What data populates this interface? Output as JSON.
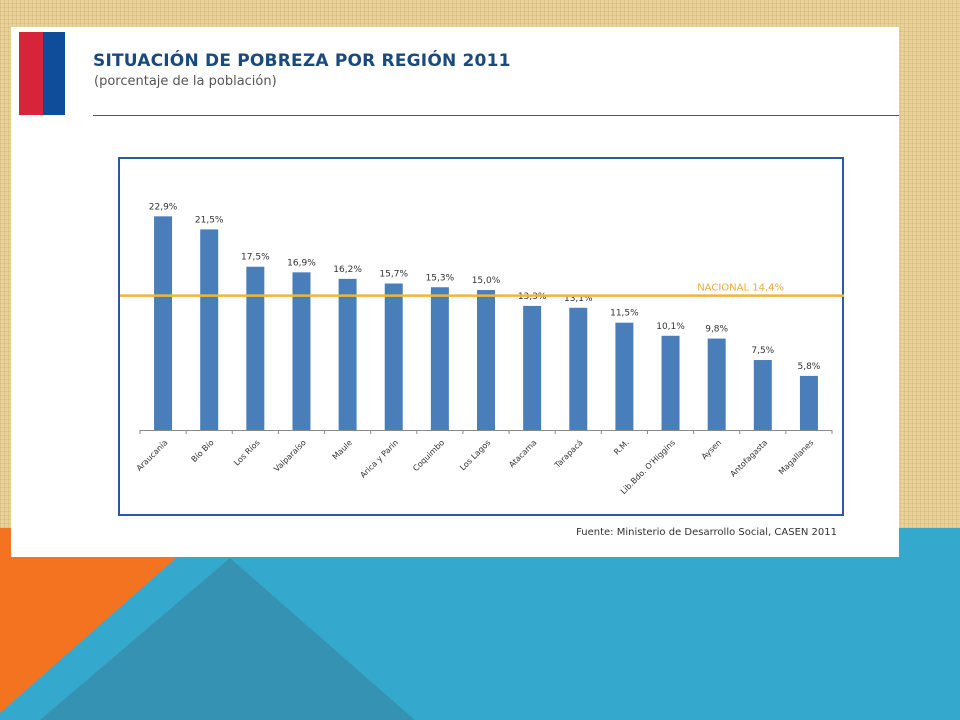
{
  "slide": {
    "title": "SITUACIÓN DE POBREZA POR REGIÓN 2011",
    "subtitle": "(porcentaje de la población)",
    "source": "Fuente: Ministerio de Desarrollo Social, CASEN 2011"
  },
  "colors": {
    "bar": "#4a7ebb",
    "reference_line": "#f2b536",
    "reference_label": "#f2a93b",
    "chart_border": "#2d58a5",
    "flag_red": "#d6253a",
    "flag_blue": "#0f4c9a",
    "background_orange": "#f47321",
    "background_blue": "#35a9cd"
  },
  "chart_data": {
    "type": "bar",
    "title": "SITUACIÓN DE POBREZA POR REGIÓN 2011",
    "subtitle": "(porcentaje de la población)",
    "categories": [
      "Araucanía",
      "Bío Bío",
      "Los Ríos",
      "Valparaíso",
      "Maule",
      "Arica y Parin",
      "Coquimbo",
      "Los Lagos",
      "Atacama",
      "Tarapacá",
      "R.M.",
      "Lib.Bdo. O'Higgins",
      "Aysen",
      "Antofagasta",
      "Magallanes"
    ],
    "values": [
      22.9,
      21.5,
      17.5,
      16.9,
      16.2,
      15.7,
      15.3,
      15.0,
      13.3,
      13.1,
      11.5,
      10.1,
      9.8,
      7.5,
      5.8
    ],
    "data_labels": [
      "22,9%",
      "21,5%",
      "17,5%",
      "16,9%",
      "16,2%",
      "15,7%",
      "15,3%",
      "15,0%",
      "13,3%",
      "13,1%",
      "11,5%",
      "10,1%",
      "9,8%",
      "7,5%",
      "5,8%"
    ],
    "reference_line": {
      "label": "NACIONAL 14,4%",
      "value": 14.4
    },
    "ylim": [
      0,
      25
    ],
    "xlabel": "",
    "ylabel": "",
    "grid": false,
    "legend": "none"
  }
}
